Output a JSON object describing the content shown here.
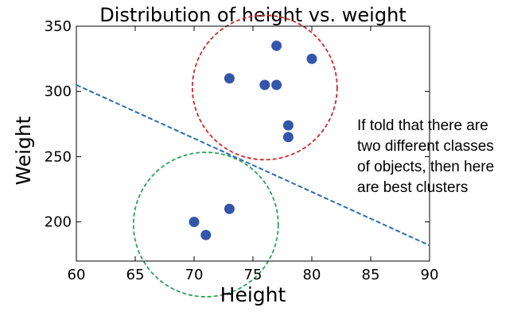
{
  "chart_data": {
    "type": "scatter",
    "title": "Distribution of height vs. weight",
    "xlabel": "Height",
    "ylabel": "Weight",
    "xlim": [
      60,
      90
    ],
    "ylim": [
      170,
      350
    ],
    "x_ticks": [
      60,
      65,
      70,
      75,
      80,
      85,
      90
    ],
    "y_ticks": [
      200,
      250,
      300,
      350
    ],
    "grid": false,
    "points": [
      {
        "x": 77,
        "y": 335
      },
      {
        "x": 80,
        "y": 325
      },
      {
        "x": 73,
        "y": 310
      },
      {
        "x": 76,
        "y": 305
      },
      {
        "x": 77,
        "y": 305
      },
      {
        "x": 78,
        "y": 274
      },
      {
        "x": 78,
        "y": 265
      },
      {
        "x": 73,
        "y": 210
      },
      {
        "x": 70,
        "y": 200
      },
      {
        "x": 71,
        "y": 190
      }
    ],
    "point_color": "#3355aa",
    "separator_line": {
      "x": [
        60,
        90
      ],
      "y": [
        305,
        182
      ],
      "color": "#2a6db0",
      "style": "dashed"
    },
    "clusters": [
      {
        "center": [
          76,
          303
        ],
        "color": "#cc2b2b"
      },
      {
        "center": [
          71,
          198
        ],
        "color": "#2fa05a"
      }
    ],
    "annotation": {
      "lines": [
        "If told that there are",
        "two different classes",
        "of objects, then here",
        "are best clusters"
      ]
    }
  }
}
